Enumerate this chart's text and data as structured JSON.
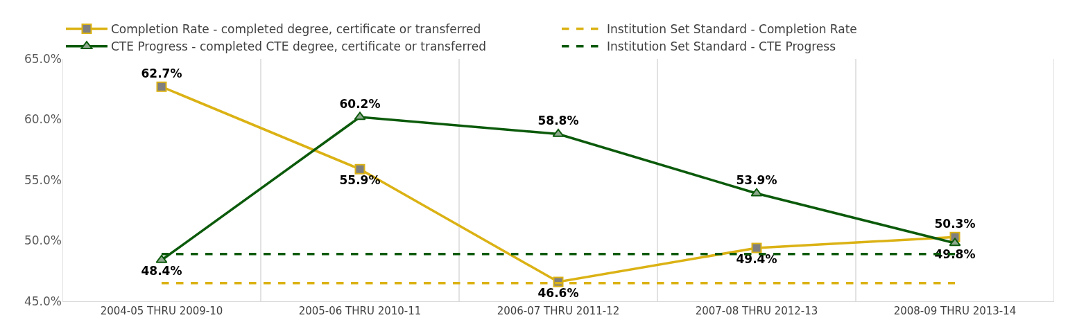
{
  "chart_data": {
    "type": "line",
    "categories": [
      "2004-05 THRU 2009-10",
      "2005-06 THRU 2010-11",
      "2006-07 THRU 2011-12",
      "2007-08 THRU 2012-13",
      "2008-09 THRU 2013-14"
    ],
    "series": [
      {
        "name": "Completion Rate - completed degree, certificate or transferred",
        "color": "#dbb214",
        "values": [
          62.7,
          55.9,
          46.6,
          49.4,
          50.3
        ],
        "marker": "square",
        "line_style": "solid",
        "value_labels": [
          "62.7%",
          "55.9%",
          "46.6%",
          "49.4%",
          "50.3%"
        ]
      },
      {
        "name": "Institution Set Standard - Completion Rate",
        "color": "#dbb214",
        "values": [
          46.5,
          46.5,
          46.5,
          46.5,
          46.5
        ],
        "marker": "none",
        "line_style": "dashed"
      },
      {
        "name": "CTE Progress - completed CTE degree, certificate or transferred",
        "color": "#0b5a0b",
        "values": [
          48.4,
          60.2,
          58.8,
          53.9,
          49.8
        ],
        "marker": "triangle",
        "line_style": "solid",
        "value_labels": [
          "48.4%",
          "60.2%",
          "58.8%",
          "53.9%",
          "49.8%"
        ]
      },
      {
        "name": "Institution Set Standard - CTE Progress",
        "color": "#0b5a0b",
        "values": [
          48.9,
          48.9,
          48.9,
          48.9,
          48.9
        ],
        "marker": "none",
        "line_style": "dashed"
      }
    ],
    "ylim": [
      45,
      65
    ],
    "yticks": [
      {
        "value": 45,
        "label": "45.0%"
      },
      {
        "value": 50,
        "label": "50.0%"
      },
      {
        "value": 55,
        "label": "55.0%"
      },
      {
        "value": 60,
        "label": "60.0%"
      },
      {
        "value": 65,
        "label": "65.0%"
      }
    ],
    "grid": "x",
    "legend": "top left"
  }
}
